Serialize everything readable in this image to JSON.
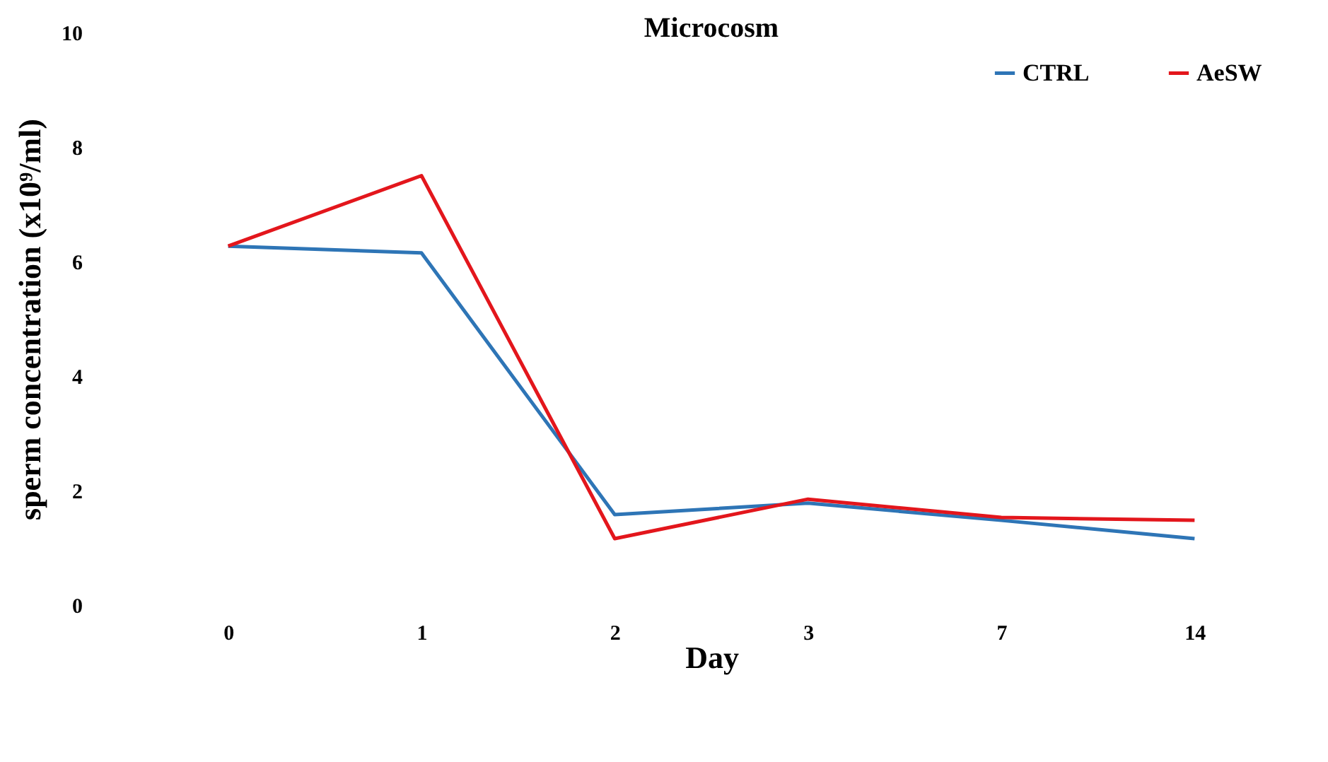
{
  "chart_data": {
    "type": "line",
    "title": "Microcosm",
    "xlabel": "Day",
    "ylabel": "sperm concentration (x10⁹/ml)",
    "categories": [
      "0",
      "1",
      "2",
      "3",
      "7",
      "14"
    ],
    "series": [
      {
        "name": "CTRL",
        "color": "#2e75b6",
        "values": [
          6.27,
          6.15,
          1.58,
          1.78,
          1.48,
          1.16
        ]
      },
      {
        "name": "AeSW",
        "color": "#e3161c",
        "values": [
          6.27,
          7.5,
          1.16,
          1.85,
          1.53,
          1.48
        ]
      }
    ],
    "ylim": [
      0,
      10
    ],
    "yticks": [
      0,
      2,
      4,
      6,
      8,
      10
    ],
    "grid": false,
    "legend": "top right",
    "marker": "none",
    "line_style": "solid"
  }
}
